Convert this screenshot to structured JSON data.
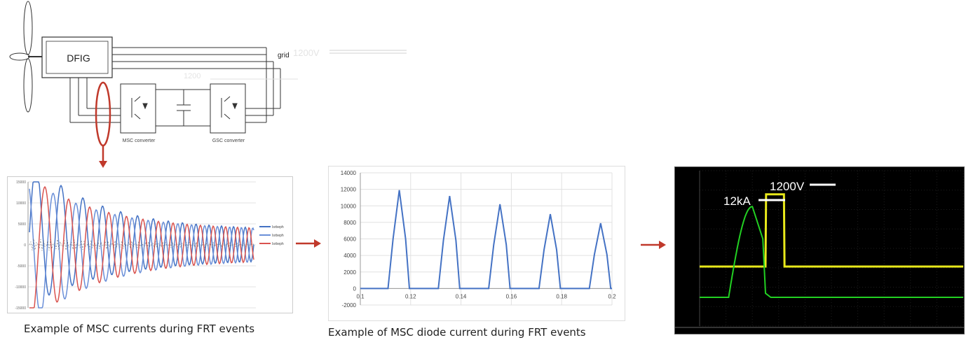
{
  "schematic": {
    "generator_label": "DFIG",
    "grid_label": "grid",
    "voltage_faded_1": "1200V",
    "voltage_faded_2": "1200",
    "msc_label": "MSC converter",
    "gsc_label": "GSC converter"
  },
  "captions": {
    "left": "Example of MSC currents during FRT events",
    "middle": "Example of MSC diode current during FRT events"
  },
  "colors": {
    "arrow": "#c0392b",
    "highlight": "#c0392b",
    "phase_a": "#4472c4",
    "phase_b": "#6a8fd8",
    "phase_c": "#d9534f",
    "diode_line": "#4472c4",
    "scope_bg": "#000000",
    "scope_voltage": "#e8e81a",
    "scope_current": "#22d022"
  },
  "chart_data": [
    {
      "type": "line",
      "title": "",
      "yticks": [
        "15000",
        "10000",
        "5000",
        "0",
        "-5000",
        "-10000",
        "-15000"
      ],
      "ylim": [
        -15000,
        15000
      ],
      "series": [
        {
          "name": "Isrbeph",
          "color": "#4472c4"
        },
        {
          "name": "Isrbeph",
          "color": "#6a8fd8"
        },
        {
          "name": "Isrbeph",
          "color": "#d9534f"
        }
      ],
      "grid": true,
      "legend": "right"
    },
    {
      "type": "line",
      "title": "",
      "xlim": [
        0.1,
        0.2
      ],
      "ylim": [
        -2000,
        14000
      ],
      "xticks": [
        "0.1",
        "0.12",
        "0.14",
        "0.16",
        "0.18",
        "0.2"
      ],
      "yticks": [
        "14000",
        "12000",
        "10000",
        "8000",
        "6000",
        "4000",
        "2000",
        "0",
        "-2000"
      ],
      "series": [
        {
          "name": "",
          "x": [
            0.1,
            0.111,
            0.113,
            0.1155,
            0.118,
            0.1195,
            0.121,
            0.131,
            0.133,
            0.1355,
            0.138,
            0.1395,
            0.141,
            0.151,
            0.153,
            0.1555,
            0.158,
            0.1595,
            0.161,
            0.171,
            0.173,
            0.1755,
            0.178,
            0.1795,
            0.181,
            0.191,
            0.193,
            0.1955,
            0.198,
            0.1995,
            0.2
          ],
          "y": [
            0,
            0,
            6000,
            11900,
            6000,
            0,
            0,
            0,
            5800,
            11200,
            5800,
            0,
            0,
            0,
            5300,
            10200,
            5300,
            0,
            0,
            0,
            4700,
            9000,
            4700,
            0,
            0,
            0,
            4100,
            7900,
            4100,
            0,
            0
          ]
        }
      ],
      "grid": true
    },
    {
      "type": "line",
      "title": "",
      "annotations": [
        "1200V",
        "12kA"
      ],
      "series": [
        {
          "name": "",
          "color": "#e8e81a",
          "t": [
            0,
            0.25,
            0.252,
            0.32,
            0.322,
            0.6,
            1
          ],
          "y": [
            0.38,
            0.38,
            1.27,
            1.27,
            0.38,
            0.38,
            0.38
          ]
        },
        {
          "name": "",
          "color": "#22d022",
          "t": [
            0,
            0.11,
            0.14,
            0.2,
            0.24,
            0.25,
            0.27,
            1
          ],
          "y": [
            0,
            0,
            0.55,
            1.12,
            0.72,
            0.05,
            0,
            0
          ]
        }
      ]
    }
  ]
}
